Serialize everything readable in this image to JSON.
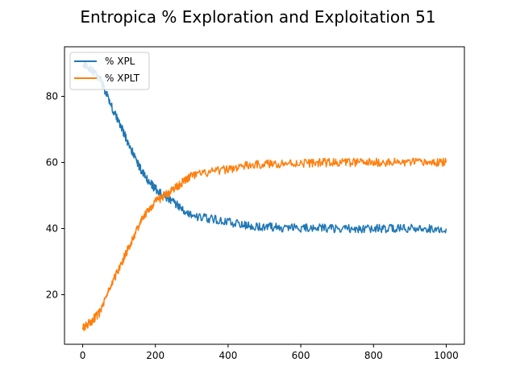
{
  "chart_data": {
    "type": "line",
    "title": "Entropica % Exploration and Exploitation 51",
    "xlabel": "",
    "ylabel": "",
    "xlim": [
      -50,
      1050
    ],
    "ylim": [
      5,
      95
    ],
    "x_ticks": [
      0,
      200,
      400,
      600,
      800,
      1000
    ],
    "y_ticks": [
      20,
      40,
      60,
      80
    ],
    "grid": false,
    "legend": {
      "placement": "top-left"
    },
    "series": [
      {
        "name": "% XPL",
        "color": "#1f77b4",
        "x": [
          0,
          25,
          50,
          75,
          100,
          125,
          150,
          175,
          200,
          225,
          250,
          275,
          300,
          350,
          400,
          450,
          500,
          550,
          600,
          650,
          700,
          750,
          800,
          850,
          900,
          950,
          1000
        ],
        "y": [
          90,
          88,
          85,
          78,
          72,
          66,
          60,
          55,
          52,
          50,
          48,
          46,
          44,
          43,
          42,
          41,
          40.5,
          40.3,
          40.2,
          40.1,
          40,
          40,
          40,
          40,
          40,
          40,
          40
        ]
      },
      {
        "name": "% XPLT",
        "color": "#ff7f0e",
        "x": [
          0,
          25,
          50,
          75,
          100,
          125,
          150,
          175,
          200,
          225,
          250,
          275,
          300,
          350,
          400,
          450,
          500,
          550,
          600,
          650,
          700,
          750,
          800,
          850,
          900,
          950,
          1000
        ],
        "y": [
          10,
          12,
          15,
          22,
          28,
          34,
          40,
          45,
          48,
          50,
          52,
          54,
          56,
          57,
          58,
          59,
          59.5,
          59.7,
          59.8,
          59.9,
          60,
          60,
          60,
          60,
          60,
          60,
          60
        ]
      }
    ]
  }
}
